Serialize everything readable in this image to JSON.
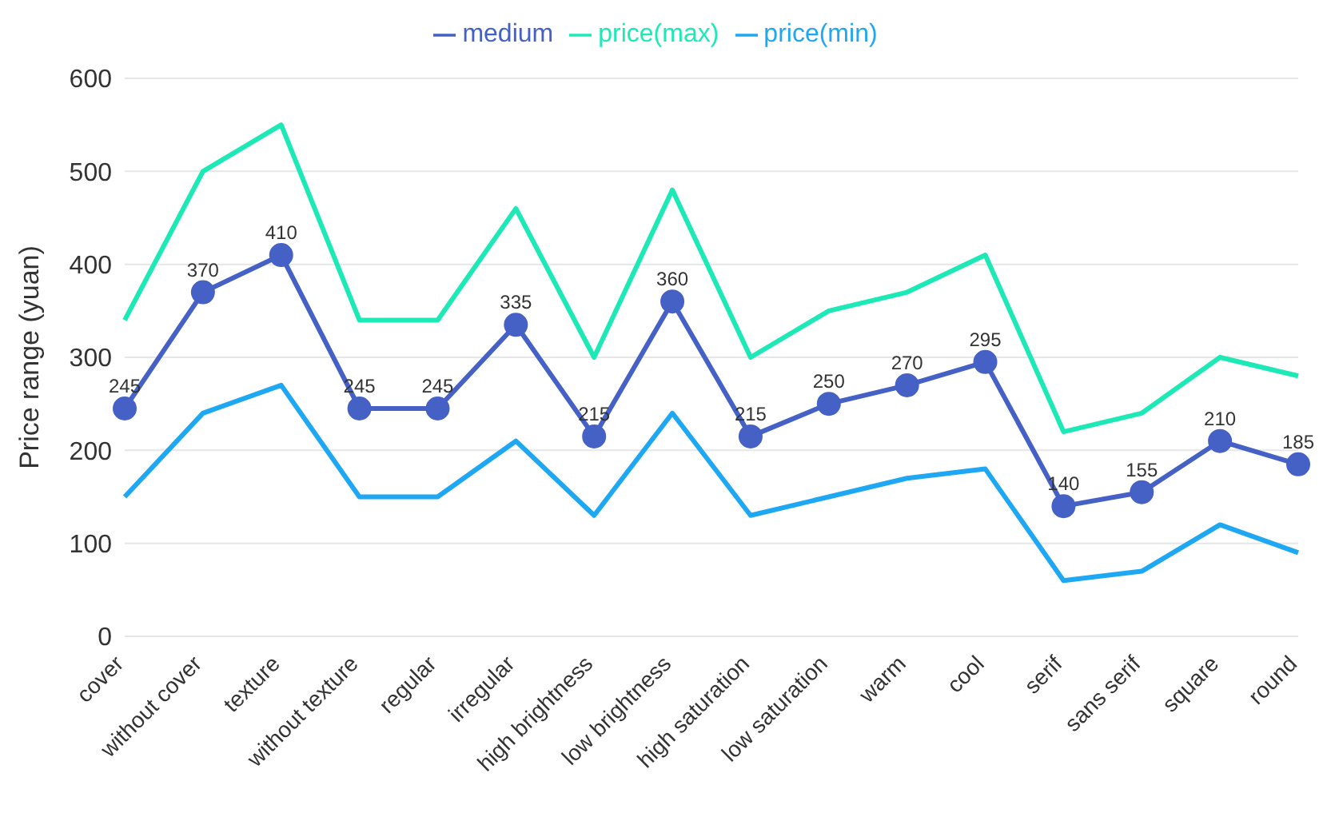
{
  "chart_data": {
    "type": "line",
    "ylabel": "Price range (yuan)",
    "categories": [
      "cover",
      "without cover",
      "texture",
      "without texture",
      "regular",
      "irregular",
      "high brightness",
      "low brightness",
      "high saturation",
      "low saturation",
      "warm",
      "cool",
      "serif",
      "sans serif",
      "square",
      "round"
    ],
    "series": [
      {
        "name": "price(min)",
        "color": "#1ea7f2",
        "marker": "none",
        "values": [
          150,
          240,
          270,
          150,
          150,
          210,
          130,
          240,
          130,
          150,
          170,
          180,
          60,
          70,
          120,
          90
        ]
      },
      {
        "name": "price(max)",
        "color": "#1de9b6",
        "marker": "none",
        "values": [
          340,
          500,
          550,
          340,
          340,
          460,
          300,
          480,
          300,
          350,
          370,
          410,
          220,
          240,
          300,
          280
        ]
      },
      {
        "name": "medium",
        "color": "#4561c6",
        "marker": "circle",
        "values": [
          245,
          370,
          410,
          245,
          245,
          335,
          215,
          360,
          215,
          250,
          270,
          295,
          140,
          155,
          210,
          185
        ],
        "value_labels": [
          "245",
          "370",
          "410",
          "245",
          "245",
          "335",
          "215",
          "360",
          "215",
          "250",
          "270",
          "295",
          "140",
          "155",
          "210",
          "185"
        ]
      }
    ],
    "ylim": [
      0,
      600
    ],
    "yticks": [
      0,
      100,
      200,
      300,
      400,
      500,
      600
    ],
    "grid": "y",
    "legend": "top"
  }
}
